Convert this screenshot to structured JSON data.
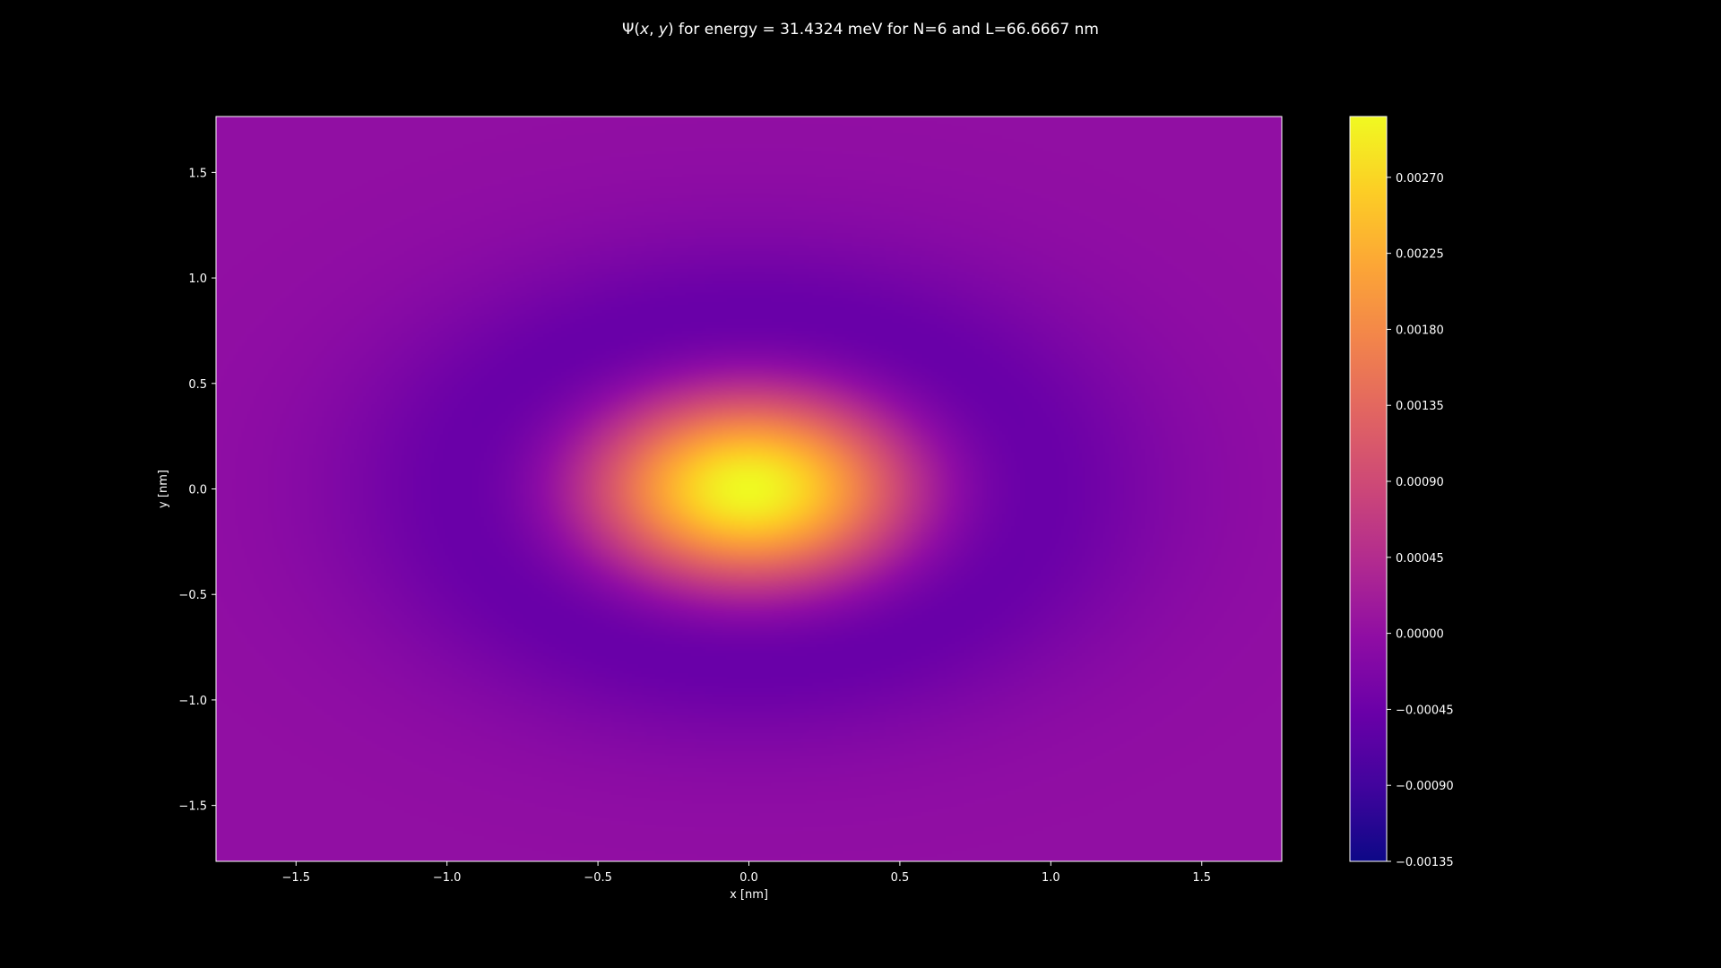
{
  "chart_data": {
    "type": "heatmap",
    "title": "Ψ(x, y) for energy = 31.4324 meV for N=6 and L=66.6667 nm",
    "title_parts": {
      "prefix": "Ψ(",
      "x": "x",
      "comma": ", ",
      "y": "y",
      "suffix": ") for energy = 31.4324 meV for N=6 and L=66.6667 nm"
    },
    "xlabel": "x [nm]",
    "ylabel": "y [nm]",
    "xlim": [
      -1.765,
      1.765
    ],
    "ylim": [
      -1.765,
      1.765
    ],
    "x_ticks": [
      -1.5,
      -1.0,
      -0.5,
      0.0,
      0.5,
      1.0,
      1.5
    ],
    "x_tick_labels": [
      "−1.5",
      "−1.0",
      "−0.5",
      "0.0",
      "0.5",
      "1.0",
      "1.5"
    ],
    "y_ticks": [
      1.5,
      1.0,
      0.5,
      0.0,
      -0.5,
      -1.0,
      -1.5
    ],
    "y_tick_labels": [
      "1.5",
      "1.0",
      "0.5",
      "0.0",
      "−0.5",
      "−1.0",
      "−1.5"
    ],
    "colormap": "plasma",
    "colorbar": {
      "range": [
        -0.00135,
        0.00306
      ],
      "ticks": [
        0.0027,
        0.00225,
        0.0018,
        0.00135,
        0.0009,
        0.00045,
        0.0,
        -0.00045,
        -0.0009,
        -0.00135
      ],
      "tick_labels": [
        "0.00270",
        "0.00225",
        "0.00180",
        "0.00135",
        "0.00090",
        "0.00045",
        "0.00000",
        "−0.00045",
        "−0.00090",
        "−0.00135"
      ]
    },
    "grid": false,
    "legend": "none",
    "field": {
      "description_values": {
        "peak_value": 0.00306,
        "peak_at": [
          0.0,
          0.0
        ],
        "minimum_value": -0.00135,
        "edge_value": 0.0
      }
    }
  },
  "colors": {
    "background": "#000000",
    "axes_edge": "#ffffff",
    "text": "#ffffff"
  }
}
